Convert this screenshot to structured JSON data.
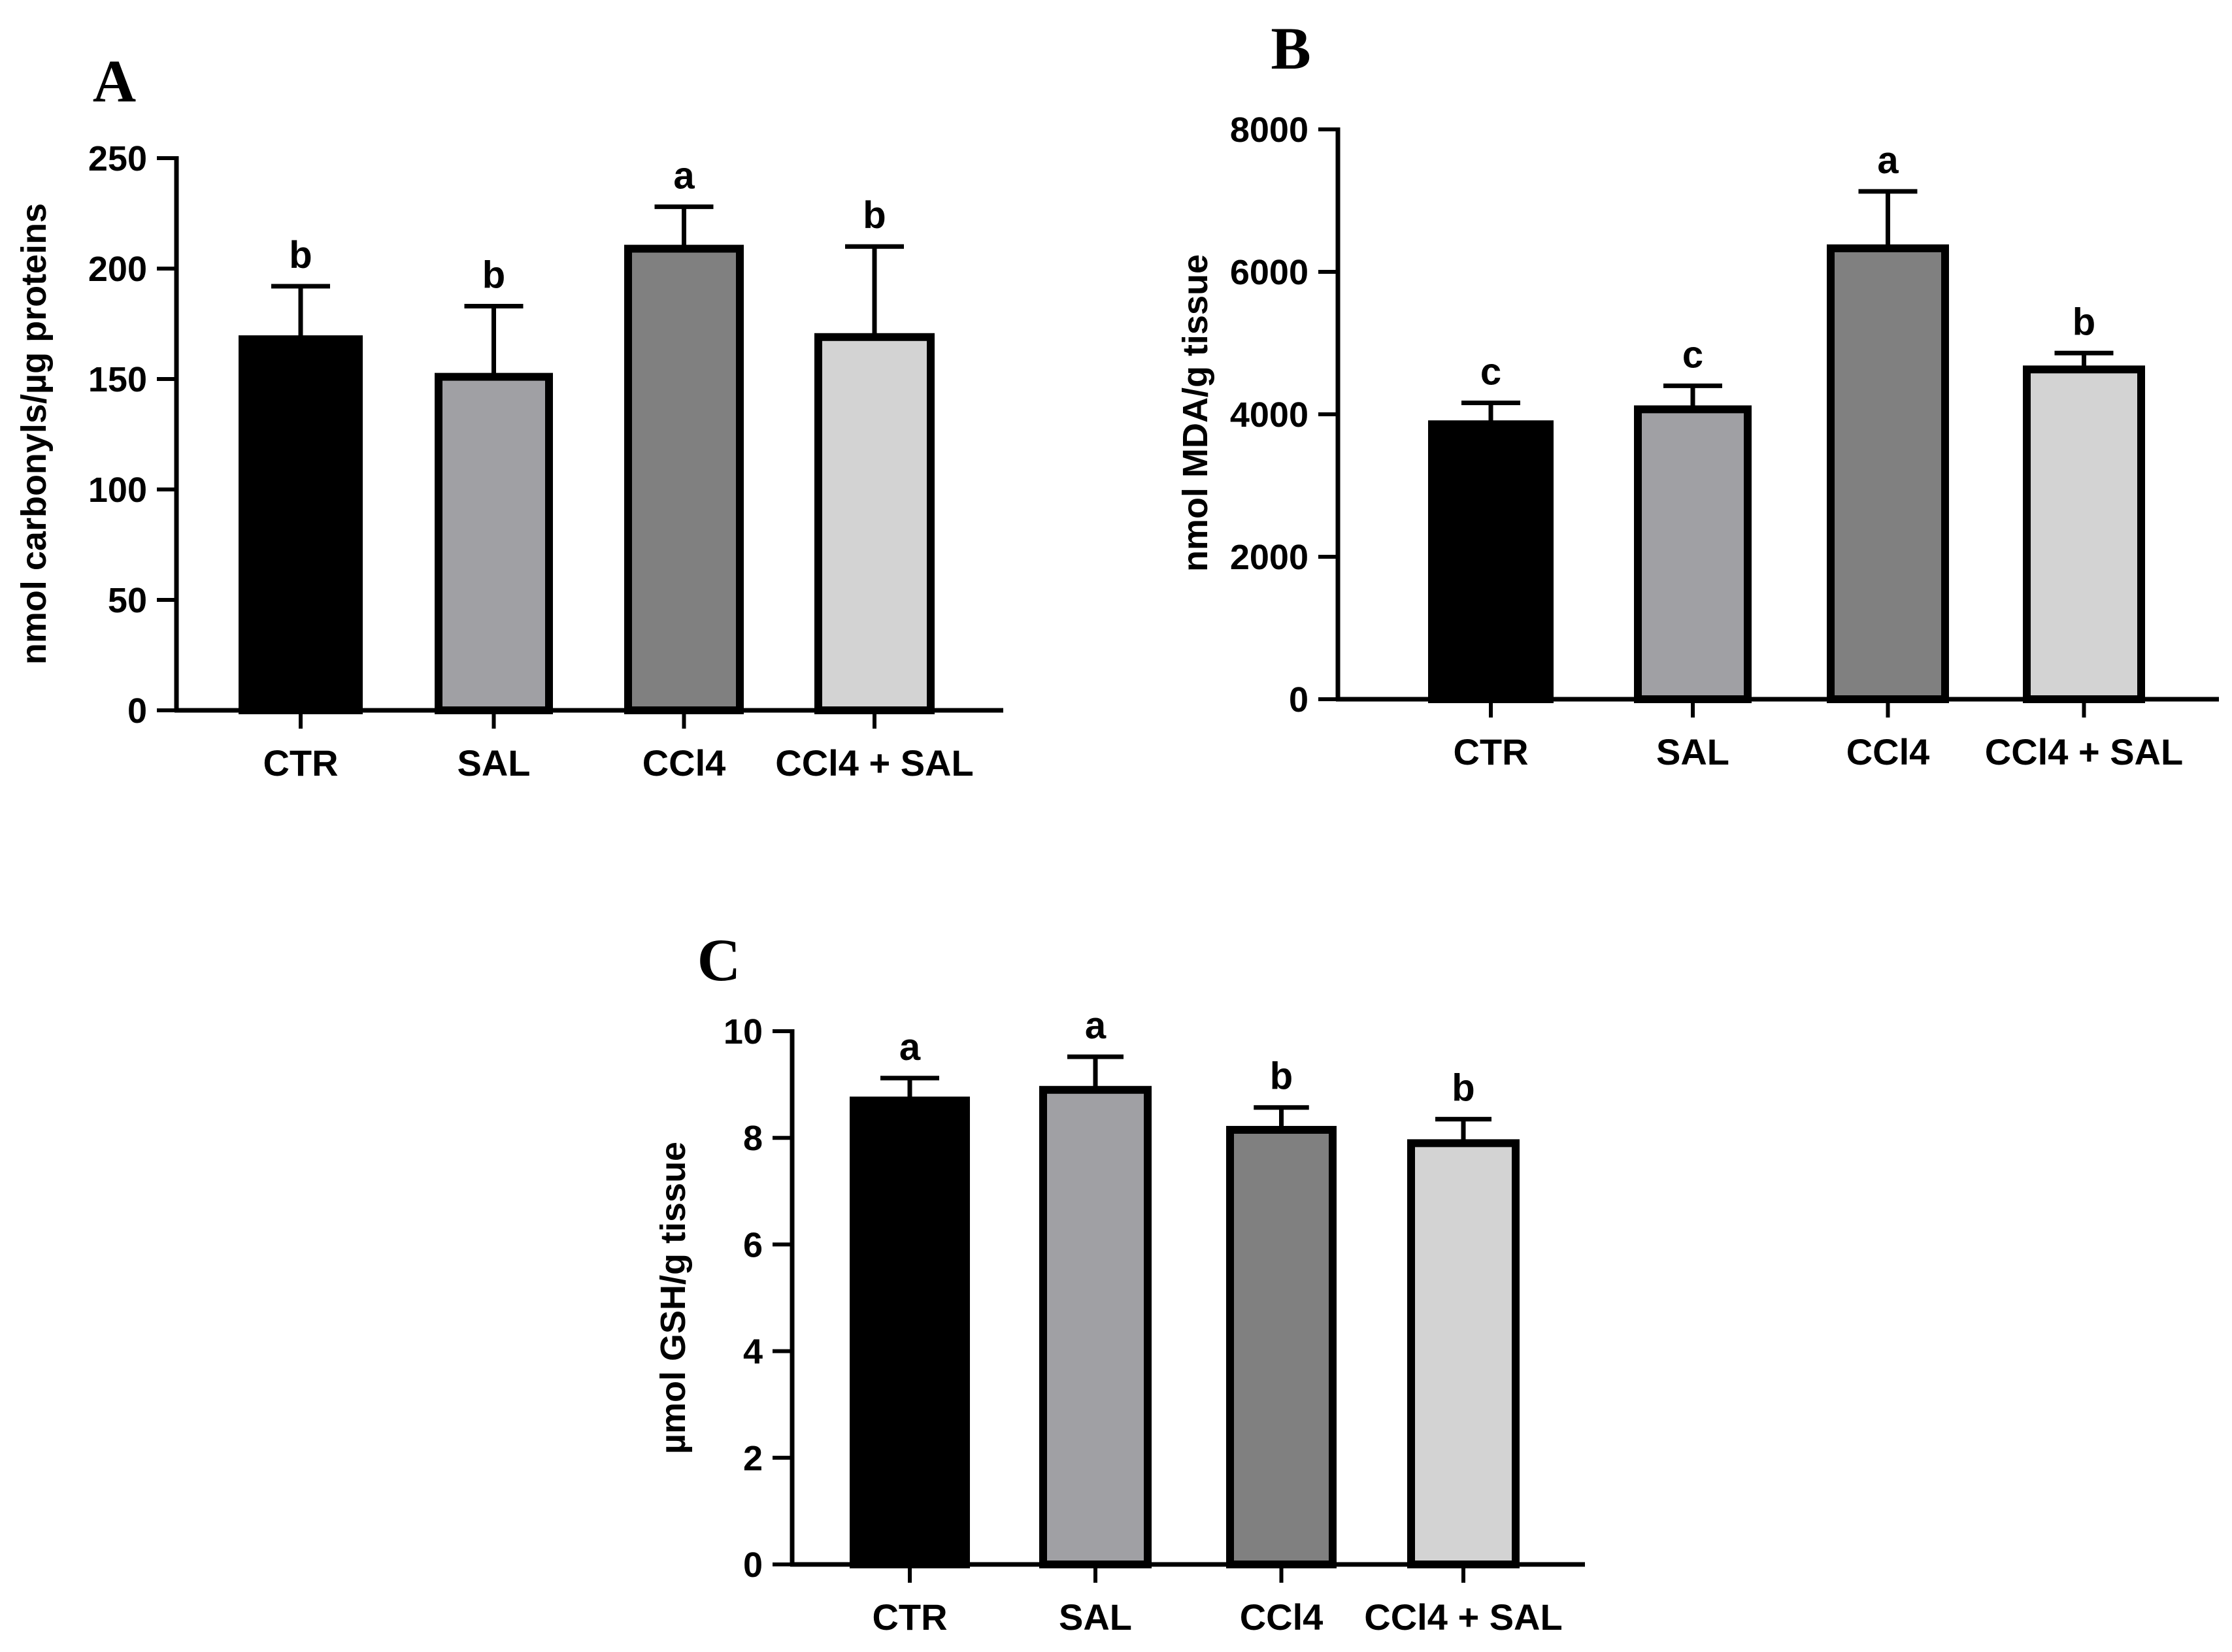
{
  "colors": {
    "bars": [
      "#000000",
      "#a0a0a4",
      "#808080",
      "#d3d3d3"
    ],
    "axis": "#000000"
  },
  "chart_data": [
    {
      "panel": "A",
      "type": "bar",
      "ylabel": "nmol carbonyls/µg proteins",
      "ylim": [
        0,
        250
      ],
      "yticks": [
        0,
        50,
        100,
        150,
        200,
        250
      ],
      "categories": [
        "CTR",
        "SAL",
        "CCl4",
        "CCl4 + SAL"
      ],
      "values": [
        168,
        151,
        209,
        169
      ],
      "errors": [
        24,
        32,
        19,
        41
      ],
      "significance": [
        "b",
        "b",
        "a",
        "b"
      ]
    },
    {
      "panel": "B",
      "type": "bar",
      "ylabel": "nmol MDA/g tissue",
      "ylim": [
        0,
        8000
      ],
      "yticks": [
        0,
        2000,
        4000,
        6000,
        8000
      ],
      "categories": [
        "CTR",
        "SAL",
        "CCl4",
        "CCl4 + SAL"
      ],
      "values": [
        3860,
        4070,
        6330,
        4630
      ],
      "errors": [
        300,
        330,
        800,
        230
      ],
      "significance": [
        "c",
        "c",
        "a",
        "b"
      ]
    },
    {
      "panel": "C",
      "type": "bar",
      "ylabel": "µmol GSH/g tissue",
      "ylim": [
        0,
        10
      ],
      "yticks": [
        0,
        2,
        4,
        6,
        8,
        10
      ],
      "categories": [
        "CTR",
        "SAL",
        "CCl4",
        "CCl4 + SAL"
      ],
      "values": [
        8.7,
        8.9,
        8.15,
        7.9
      ],
      "errors": [
        0.42,
        0.62,
        0.42,
        0.45
      ],
      "significance": [
        "a",
        "a",
        "b",
        "b"
      ]
    }
  ]
}
